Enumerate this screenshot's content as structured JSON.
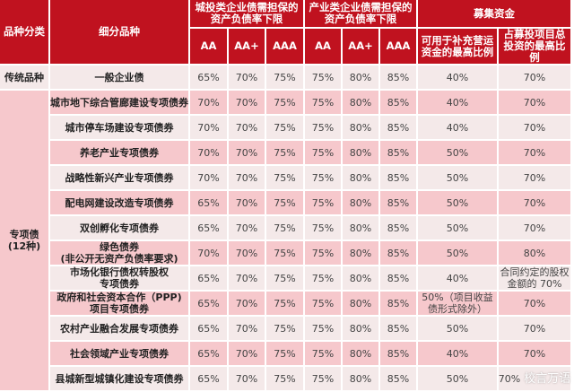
{
  "header": {
    "category": "品种分类",
    "subtype": "细分品种",
    "group_chengtou": "城投类企业债需担保的资产负债率下限",
    "group_chanye": "产业类企业债需担保的资产负债率下限",
    "group_fund": "募集资金",
    "ratings": [
      "AA",
      "AA+",
      "AAA"
    ],
    "fund_working": "可用于补充营运资金的最高比例",
    "fund_project": "占募投项目总投资的最高比例"
  },
  "categories": {
    "traditional": "传统品种",
    "special": "专项债\n(12种)"
  },
  "rows": [
    {
      "name": "一般企业债",
      "v": [
        "65%",
        "70%",
        "75%",
        "75%",
        "80%",
        "85%"
      ],
      "working": "40%",
      "project": "70%"
    },
    {
      "name": "城市地下综合管廊建设专项债券",
      "v": [
        "70%",
        "70%",
        "75%",
        "75%",
        "80%",
        "85%"
      ],
      "working": "40%",
      "project": "70%"
    },
    {
      "name": "城市停车场建设专项债券",
      "v": [
        "70%",
        "70%",
        "75%",
        "75%",
        "80%",
        "85%"
      ],
      "working": "40%",
      "project": "70%"
    },
    {
      "name": "养老产业专项债券",
      "v": [
        "70%",
        "70%",
        "75%",
        "75%",
        "80%",
        "85%"
      ],
      "working": "50%",
      "project": "70%"
    },
    {
      "name": "战略性新兴产业专项债券",
      "v": [
        "70%",
        "70%",
        "75%",
        "75%",
        "80%",
        "85%"
      ],
      "working": "50%",
      "project": "70%"
    },
    {
      "name": "配电网建设改造专项债券",
      "v": [
        "65%",
        "70%",
        "75%",
        "75%",
        "80%",
        "85%"
      ],
      "working": "50%",
      "project": "70%"
    },
    {
      "name": "双创孵化专项债券",
      "v": [
        "65%",
        "70%",
        "75%",
        "75%",
        "80%",
        "85%"
      ],
      "working": "50%",
      "project": "70%"
    },
    {
      "name": "绿色债券\n(非公开无资产负债率要求)",
      "v": [
        "70%",
        "70%",
        "75%",
        "75%",
        "80%",
        "85%"
      ],
      "working": "50%",
      "project": "80%"
    },
    {
      "name": "市场化银行债权转股权\n专项债券",
      "v": [
        "65%",
        "70%",
        "75%",
        "75%",
        "80%",
        "85%"
      ],
      "working": "40%",
      "project": "合同约定的股权金额的 70%"
    },
    {
      "name": "政府和社会资本合作（PPP)\n项目专项债券",
      "v": [
        "65%",
        "70%",
        "75%",
        "75%",
        "80%",
        "85%"
      ],
      "working": "50%（项目收益债形式除外）",
      "project": "70%"
    },
    {
      "name": "农村产业融合发展专项债券",
      "v": [
        "65%",
        "70%",
        "75%",
        "75%",
        "80%",
        "85%"
      ],
      "working": "50%",
      "project": "70%"
    },
    {
      "name": "社会领域产业专项债券",
      "v": [
        "65%",
        "70%",
        "75%",
        "75%",
        "80%",
        "85%"
      ],
      "working": "40%",
      "project": "70%"
    },
    {
      "name": "县城新型城镇化建设专项债券",
      "v": [
        "65%",
        "70%",
        "75%",
        "75%",
        "80%",
        "85%"
      ],
      "working": "50%",
      "project": "70%"
    }
  ],
  "watermark": "校言万语",
  "colors": {
    "header": "#c0121f",
    "row_pink": "#f6c8cc",
    "row_light": "#f4e9e9"
  }
}
